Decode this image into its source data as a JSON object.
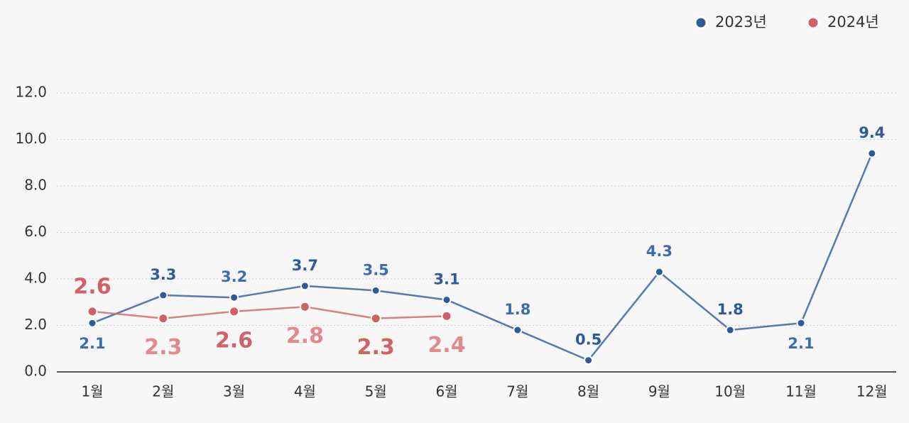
{
  "chart_data": {
    "type": "line",
    "categories": [
      "1월",
      "2월",
      "3월",
      "4월",
      "5월",
      "6월",
      "7월",
      "8월",
      "9월",
      "10월",
      "11월",
      "12월"
    ],
    "series": [
      {
        "name": "2023년",
        "color": "#2d5a9a",
        "values": [
          2.1,
          3.3,
          3.2,
          3.7,
          3.5,
          3.1,
          1.8,
          0.5,
          4.3,
          1.8,
          2.1,
          9.4
        ]
      },
      {
        "name": "2024년",
        "color": "#d0606a",
        "values": [
          2.6,
          2.3,
          2.6,
          2.8,
          2.3,
          2.4,
          null,
          null,
          null,
          null,
          null,
          null
        ]
      }
    ],
    "ylim": [
      0,
      12
    ],
    "yticks": [
      {
        "value": 0,
        "label": "0.0"
      },
      {
        "value": 2,
        "label": "2.0"
      },
      {
        "value": 4,
        "label": "4.0"
      },
      {
        "value": 6,
        "label": "6.0"
      },
      {
        "value": 8,
        "label": "8.0"
      },
      {
        "value": 10,
        "label": "10.0"
      },
      {
        "value": 12,
        "label": "12.0"
      }
    ],
    "grid": true,
    "legend": "top-right"
  }
}
